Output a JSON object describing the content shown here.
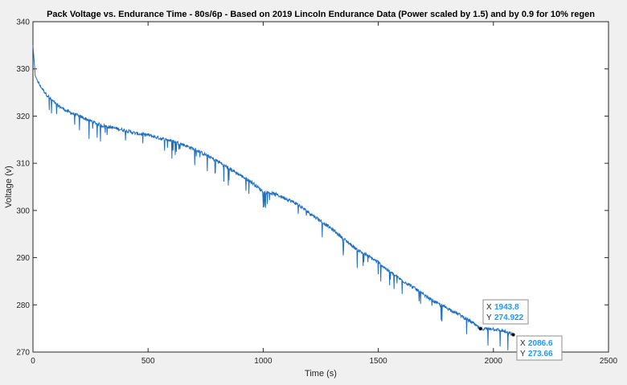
{
  "chart_data": {
    "type": "line",
    "title": "Pack Voltage vs. Endurance Time - 80s/6p -  Based on 2019 Lincoln Endurance Data (Power scaled by 1.5) and by 0.9 for 10% regen",
    "xlabel": "Time (s)",
    "ylabel": "Voltage (v)",
    "xlim": [
      0,
      2500
    ],
    "ylim": [
      270,
      340
    ],
    "xticks": [
      0,
      500,
      1000,
      1500,
      2000,
      2500
    ],
    "yticks": [
      270,
      280,
      290,
      300,
      310,
      320,
      330,
      340
    ],
    "grid": false,
    "legend": "none",
    "line_color": "#1f6fc0",
    "series": [
      {
        "x": [
          0,
          10,
          30,
          60,
          100,
          150,
          200,
          250,
          300,
          350,
          400,
          450,
          500,
          550,
          600,
          650,
          700,
          750,
          800,
          850,
          900,
          950,
          1000,
          1050,
          1100,
          1150,
          1200,
          1250,
          1300,
          1350,
          1400,
          1450,
          1500,
          1550,
          1600,
          1650,
          1700,
          1750,
          1800,
          1850,
          1900,
          1943.8,
          1990,
          2040,
          2086.6
        ],
        "y": [
          335,
          328.5,
          326.5,
          324.5,
          322.5,
          321,
          320,
          319,
          318,
          317.5,
          317,
          316.3,
          316,
          315.3,
          314.8,
          314,
          313,
          311.8,
          310.5,
          309,
          307.5,
          306,
          304,
          303.5,
          302.5,
          301.3,
          299.5,
          297.8,
          296,
          294,
          292,
          290.5,
          289,
          287,
          285.3,
          283.8,
          282,
          280.5,
          279.3,
          278,
          276.5,
          274.922,
          275,
          274.5,
          273.66
        ]
      }
    ],
    "datatips": [
      {
        "x": "1943.8",
        "y": "274.922"
      },
      {
        "x": "2086.6",
        "y": "273.66"
      }
    ]
  },
  "labels": {
    "x_key": "X",
    "y_key": "Y"
  }
}
